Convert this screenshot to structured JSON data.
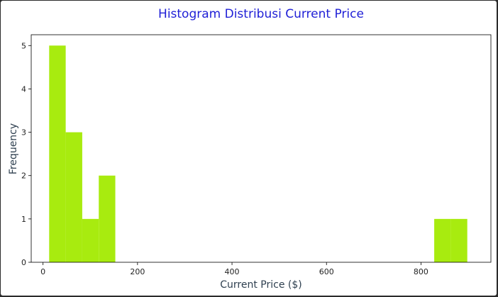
{
  "chart_data": {
    "type": "bar",
    "title": "Histogram Distribusi Current Price",
    "xlabel": "Current Price ($)",
    "ylabel": "Frequency",
    "xlim": [
      -25,
      948
    ],
    "ylim": [
      0,
      5.25
    ],
    "bar_color": "#a8eb0f",
    "title_color": "#1f1fd6",
    "label_color": "#2f4050",
    "bin_width": 35,
    "bins": [
      {
        "start": 13,
        "end": 48,
        "count": 5
      },
      {
        "start": 48,
        "end": 83,
        "count": 3
      },
      {
        "start": 83,
        "end": 118,
        "count": 1
      },
      {
        "start": 118,
        "end": 153,
        "count": 2
      },
      {
        "start": 828,
        "end": 863,
        "count": 1
      },
      {
        "start": 863,
        "end": 898,
        "count": 1
      }
    ],
    "xticks": [
      0,
      200,
      400,
      600,
      800
    ],
    "xtick_labels": [
      "0",
      "200",
      "400",
      "600",
      "800"
    ],
    "yticks": [
      0,
      1,
      2,
      3,
      4,
      5
    ],
    "ytick_labels": [
      "0",
      "1",
      "2",
      "3",
      "4",
      "5"
    ],
    "grid": false
  }
}
